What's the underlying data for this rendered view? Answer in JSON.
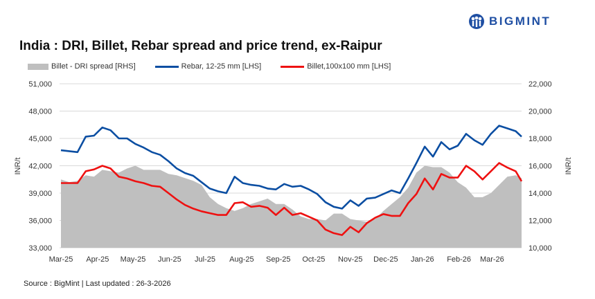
{
  "brand": {
    "name": "BIGMINT",
    "color": "#1f4fa3"
  },
  "source": "Source : BigMint | Last updated : 26-3-2026",
  "chart_data": {
    "type": "line",
    "title": "India : DRI, Billet, Rebar spread and price trend, ex-Raipur",
    "xlabel": "",
    "ylabel": "INR/t",
    "y2label": "INR/t",
    "ylim": [
      33000,
      51000
    ],
    "y2lim": [
      10000,
      22000
    ],
    "yticks": [
      "33,000",
      "36,000",
      "39,000",
      "42,000",
      "45,000",
      "48,000",
      "51,000"
    ],
    "y2ticks": [
      "10,000",
      "12,000",
      "14,000",
      "16,000",
      "18,000",
      "20,000",
      "22,000"
    ],
    "xlim": [
      "2025-03-01",
      "2026-03-26"
    ],
    "xticks": [
      {
        "date": "2025-03-01",
        "label": "Mar-25"
      },
      {
        "date": "2025-04-01",
        "label": "Apr-25"
      },
      {
        "date": "2025-05-01",
        "label": "May-25"
      },
      {
        "date": "2025-06-01",
        "label": "Jun-25"
      },
      {
        "date": "2025-07-01",
        "label": "Jul-25"
      },
      {
        "date": "2025-08-01",
        "label": "Aug-25"
      },
      {
        "date": "2025-09-01",
        "label": "Sep-25"
      },
      {
        "date": "2025-10-01",
        "label": "Oct-25"
      },
      {
        "date": "2025-11-01",
        "label": "Nov-25"
      },
      {
        "date": "2025-12-01",
        "label": "Dec-25"
      },
      {
        "date": "2026-01-01",
        "label": "Jan-26"
      },
      {
        "date": "2026-02-01",
        "label": "Feb-26"
      },
      {
        "date": "2026-03-01",
        "label": "Mar-26"
      }
    ],
    "grid": true,
    "legend_position": "top",
    "x": [
      "2025-03-01",
      "2025-03-08",
      "2025-03-15",
      "2025-03-22",
      "2025-03-29",
      "2025-04-05",
      "2025-04-12",
      "2025-04-19",
      "2025-04-26",
      "2025-05-03",
      "2025-05-10",
      "2025-05-17",
      "2025-05-24",
      "2025-05-31",
      "2025-06-07",
      "2025-06-14",
      "2025-06-21",
      "2025-06-28",
      "2025-07-05",
      "2025-07-12",
      "2025-07-19",
      "2025-07-26",
      "2025-08-02",
      "2025-08-09",
      "2025-08-16",
      "2025-08-23",
      "2025-08-30",
      "2025-09-06",
      "2025-09-13",
      "2025-09-20",
      "2025-09-27",
      "2025-10-04",
      "2025-10-11",
      "2025-10-18",
      "2025-10-25",
      "2025-11-01",
      "2025-11-08",
      "2025-11-15",
      "2025-11-22",
      "2025-11-29",
      "2025-12-06",
      "2025-12-13",
      "2025-12-20",
      "2025-12-27",
      "2026-01-03",
      "2026-01-10",
      "2026-01-17",
      "2026-01-24",
      "2026-01-31",
      "2026-02-07",
      "2026-02-14",
      "2026-02-21",
      "2026-02-28",
      "2026-03-07",
      "2026-03-14",
      "2026-03-21",
      "2026-03-26"
    ],
    "series": [
      {
        "name": "Billet - DRI spread  [RHS]",
        "type": "area",
        "axis": "right",
        "color": "#bfbfbf",
        "values": [
          15000,
          14800,
          14900,
          15300,
          15200,
          15700,
          15600,
          15500,
          15800,
          16000,
          15700,
          15700,
          15700,
          15400,
          15300,
          15100,
          14900,
          14600,
          13700,
          13200,
          12900,
          12700,
          12900,
          13200,
          13400,
          13600,
          13200,
          13200,
          12800,
          12300,
          12100,
          12100,
          12000,
          12500,
          12500,
          12100,
          12000,
          11900,
          12100,
          12700,
          13200,
          13700,
          14400,
          15500,
          16000,
          15900,
          15900,
          15500,
          14800,
          14400,
          13700,
          13700,
          14000,
          14600,
          15200,
          15300,
          15100
        ]
      },
      {
        "name": "Rebar, 12-25 mm [LHS]",
        "type": "line",
        "axis": "left",
        "color": "#0b4ea2",
        "values": [
          43700,
          43600,
          43500,
          45200,
          45300,
          46200,
          45900,
          45000,
          45000,
          44400,
          44000,
          43500,
          43200,
          42500,
          41700,
          41200,
          40900,
          40200,
          39500,
          39200,
          39000,
          40800,
          40100,
          39900,
          39800,
          39500,
          39400,
          40000,
          39700,
          39800,
          39400,
          38900,
          38000,
          37500,
          37300,
          38200,
          37600,
          38400,
          38500,
          38900,
          39300,
          39000,
          40600,
          42300,
          44100,
          43000,
          44600,
          43800,
          44200,
          45500,
          44800,
          44300,
          45500,
          46400,
          46100,
          45800,
          45200
        ]
      },
      {
        "name": "Billet,100x100 mm [LHS]",
        "type": "line",
        "axis": "left",
        "color": "#ee1111",
        "values": [
          40100,
          40100,
          40100,
          41400,
          41600,
          42000,
          41700,
          40800,
          40600,
          40300,
          40100,
          39800,
          39700,
          39000,
          38300,
          37700,
          37300,
          37000,
          36800,
          36600,
          36600,
          37900,
          38000,
          37500,
          37600,
          37400,
          36600,
          37400,
          36600,
          36800,
          36400,
          36000,
          35000,
          34600,
          34400,
          35300,
          34700,
          35700,
          36300,
          36700,
          36500,
          36500,
          37900,
          38900,
          40600,
          39400,
          41100,
          40700,
          40700,
          42000,
          41400,
          40500,
          41400,
          42300,
          41800,
          41400,
          40300
        ]
      }
    ]
  }
}
